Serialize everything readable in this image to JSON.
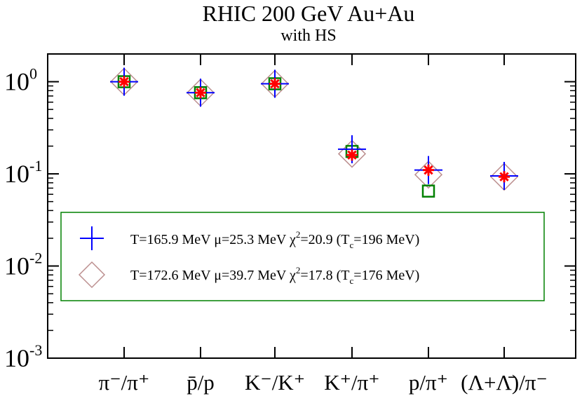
{
  "chart_data": {
    "type": "scatter",
    "title": "RHIC 200 GeV Au+Au",
    "subtitle": "with HS",
    "xlabel": "",
    "ylabel": "",
    "y_scale": "log",
    "ylim": [
      0.001,
      2.0
    ],
    "grid": false,
    "legend_position": "center-left",
    "categories": [
      "π⁻/π⁺",
      "p̄/p",
      "K⁻/K⁺",
      "K⁺/π⁺",
      "p/π⁺",
      "(Λ+Λ̄)/π⁻"
    ],
    "y_tick_labels": [
      {
        "value": 1,
        "base": "10",
        "exp": "0"
      },
      {
        "value": 0.1,
        "base": "10",
        "exp": "-1"
      },
      {
        "value": 0.01,
        "base": "10",
        "exp": "-2"
      },
      {
        "value": 0.001,
        "base": "10",
        "exp": "-3"
      }
    ],
    "series": [
      {
        "name": "T=165.9 MeV  μ=25.3 MeV  χ²=20.9 (Tc=196 MeV)",
        "marker": "plus",
        "color": "#0000ff",
        "values": [
          1.0,
          0.76,
          0.95,
          0.185,
          0.11,
          0.095
        ]
      },
      {
        "name": "T=172.6 MeV  μ=39.7 MeV χ²=17.8  (Tc=176 MeV)",
        "marker": "diamond",
        "color": "#bc8f8f",
        "values": [
          1.0,
          0.76,
          0.95,
          0.165,
          0.098,
          0.093
        ]
      },
      {
        "marker": "square",
        "color": "#008000",
        "values": [
          1.0,
          0.76,
          0.95,
          0.175,
          0.065,
          null
        ]
      },
      {
        "marker": "star",
        "color": "#ff0000",
        "values": [
          1.0,
          0.76,
          0.95,
          0.16,
          0.11,
          0.093
        ],
        "errors": [
          0.07,
          0.06,
          0.07,
          0.02,
          0.015,
          0.008
        ]
      }
    ],
    "legend": {
      "rows": [
        {
          "prefix": "T=165.9 MeV  μ=25.3 MeV  χ",
          "sup": "2",
          "mid": "=20.9 (T",
          "sub": "c",
          "suffix": "=196 MeV)"
        },
        {
          "prefix": "T=172.6 MeV  μ=39.7 MeV χ",
          "sup": "2",
          "mid": "=17.8  (T",
          "sub": "c",
          "suffix": "=176 MeV)"
        }
      ],
      "border_color": "#008000"
    }
  }
}
